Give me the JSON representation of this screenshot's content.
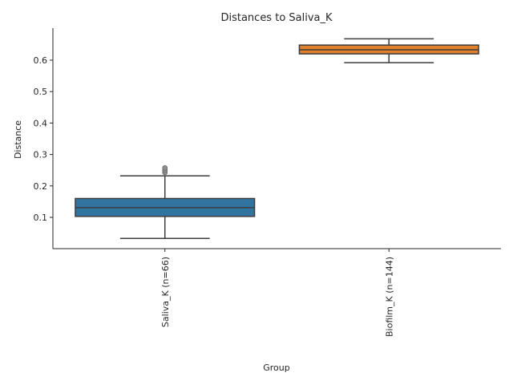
{
  "chart_data": {
    "type": "box",
    "title": "Distances to Saliva_K",
    "xlabel": "Group",
    "ylabel": "Distance",
    "ylim": [
      0.0,
      0.7
    ],
    "yticks": [
      0.1,
      0.2,
      0.3,
      0.4,
      0.5,
      0.6
    ],
    "grid": false,
    "legend": "none",
    "categories": [
      "Saliva_K (n=66)",
      "Biofilm_K (n=144)"
    ],
    "boxes": [
      {
        "category": "Saliva_K (n=66)",
        "color": "#3274a1",
        "whisker_low": 0.033,
        "q1": 0.103,
        "median": 0.131,
        "q3": 0.16,
        "whisker_high": 0.232,
        "outliers": [
          0.243,
          0.25,
          0.257
        ]
      },
      {
        "category": "Biofilm_K (n=144)",
        "color": "#e1812c",
        "whisker_low": 0.592,
        "q1": 0.62,
        "median": 0.633,
        "q3": 0.648,
        "whisker_high": 0.668,
        "outliers": []
      }
    ]
  }
}
